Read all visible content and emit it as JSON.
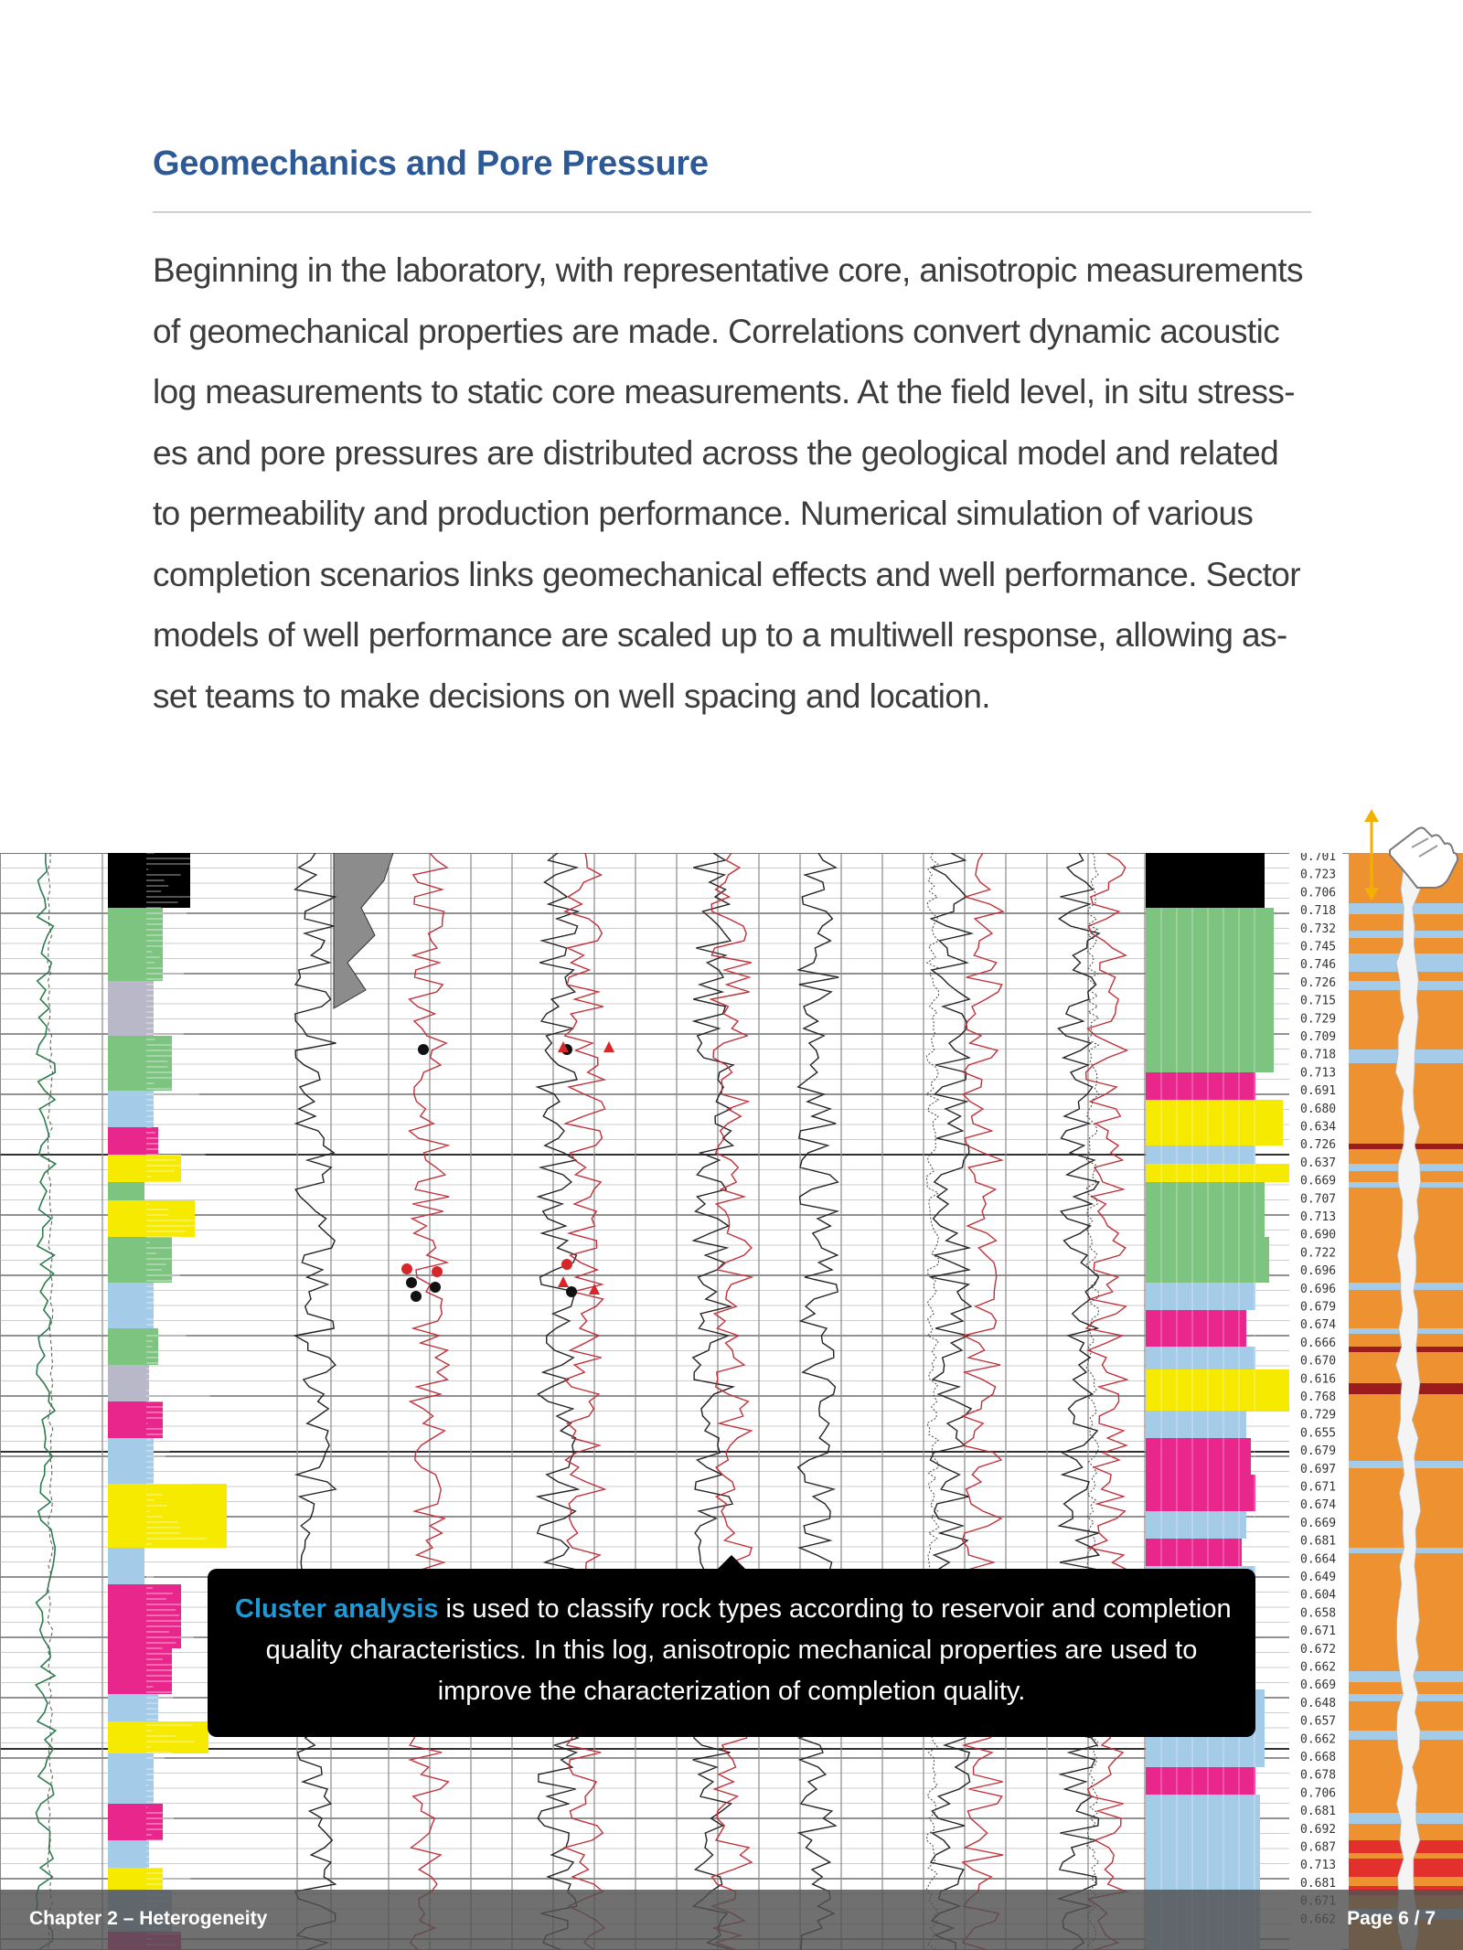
{
  "page": {
    "title": "Geomechanics and Pore Pressure",
    "body_lines": [
      "Beginning in the laboratory, with representative core, anisotropic measurements",
      "of geomechanical properties are made. Correlations convert dynamic acoustic",
      "log measurements to static core measurements. At the field level, in situ stress-",
      "es and pore pressures are distributed across the geological model and related",
      "to permeability and production performance. Numerical simulation of various",
      "completion scenarios links geomechanical effects and well performance. Sector",
      "models of well performance are scaled up to a multiwell response, allowing as-",
      "set teams to make decisions on well spacing and location."
    ]
  },
  "callout": {
    "highlight": "Cluster analysis",
    "line1_rest": " is used to classify rock types according to reservoir and completion",
    "line2": "quality characteristics. In this log, anisotropic mechanical properties are used to",
    "line3": "improve the characterization of completion quality."
  },
  "log": {
    "depth_values": [
      "0.701",
      "0.723",
      "0.706",
      "0.718",
      "0.732",
      "0.745",
      "0.746",
      "0.726",
      "0.715",
      "0.729",
      "0.709",
      "0.718",
      "0.713",
      "0.691",
      "0.680",
      "0.634",
      "0.726",
      "0.637",
      "0.669",
      "0.707",
      "0.713",
      "0.690",
      "0.722",
      "0.696",
      "0.696",
      "0.679",
      "0.674",
      "0.666",
      "0.670",
      "0.616",
      "0.768",
      "0.729",
      "0.655",
      "0.679",
      "0.697",
      "0.671",
      "0.674",
      "0.669",
      "0.681",
      "0.664",
      "0.649",
      "0.604",
      "0.658",
      "0.671",
      "0.672",
      "0.662",
      "0.669",
      "0.648",
      "0.657",
      "0.662",
      "0.668",
      "0.678",
      "0.706",
      "0.681",
      "0.692",
      "0.687",
      "0.713",
      "0.681",
      "0.671",
      "0.662"
    ],
    "facies_colors": {
      "black": "#000000",
      "green": "#7cc47f",
      "blue": "#a4cbe8",
      "grey": "#b8b8c8",
      "magenta": "#e8268c",
      "yellow": "#f5ea00",
      "orange": "#ee9231",
      "dark_red": "#9b1c1c",
      "red": "#e4302c"
    }
  },
  "swipe_icon": "swipe-hand-icon",
  "footer": {
    "chapter": "Chapter 2 – Heterogeneity",
    "page": "Page 6 / 7"
  }
}
